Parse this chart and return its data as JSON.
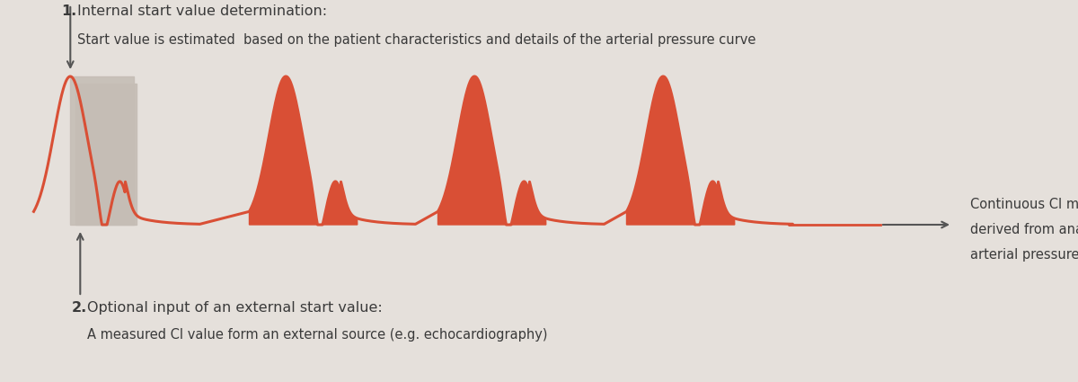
{
  "background_color": "#e5e0db",
  "line_color": "#d94f35",
  "fill_color_red": "#d94f35",
  "fill_color_gray": "#c5bdb5",
  "arrow_color": "#555555",
  "text_color": "#3a3a3a",
  "text1_bold": "1.",
  "text1_rest": " Internal start value determination:",
  "text1_line2": "Start value is estimated  based on the patient characteristics and details of the arterial pressure curve",
  "text2_bold": "2.",
  "text2_rest": " Optional input of an external start value:",
  "text2_line2": "A measured CI value form an external source (e.g. echocardiography)",
  "text3_line1": "Continuous CI measurement",
  "text3_line2": "derived from analysis of the",
  "text3_line3": "arterial pressure curve",
  "fig_width": 12.0,
  "fig_height": 4.25,
  "dpi": 100
}
